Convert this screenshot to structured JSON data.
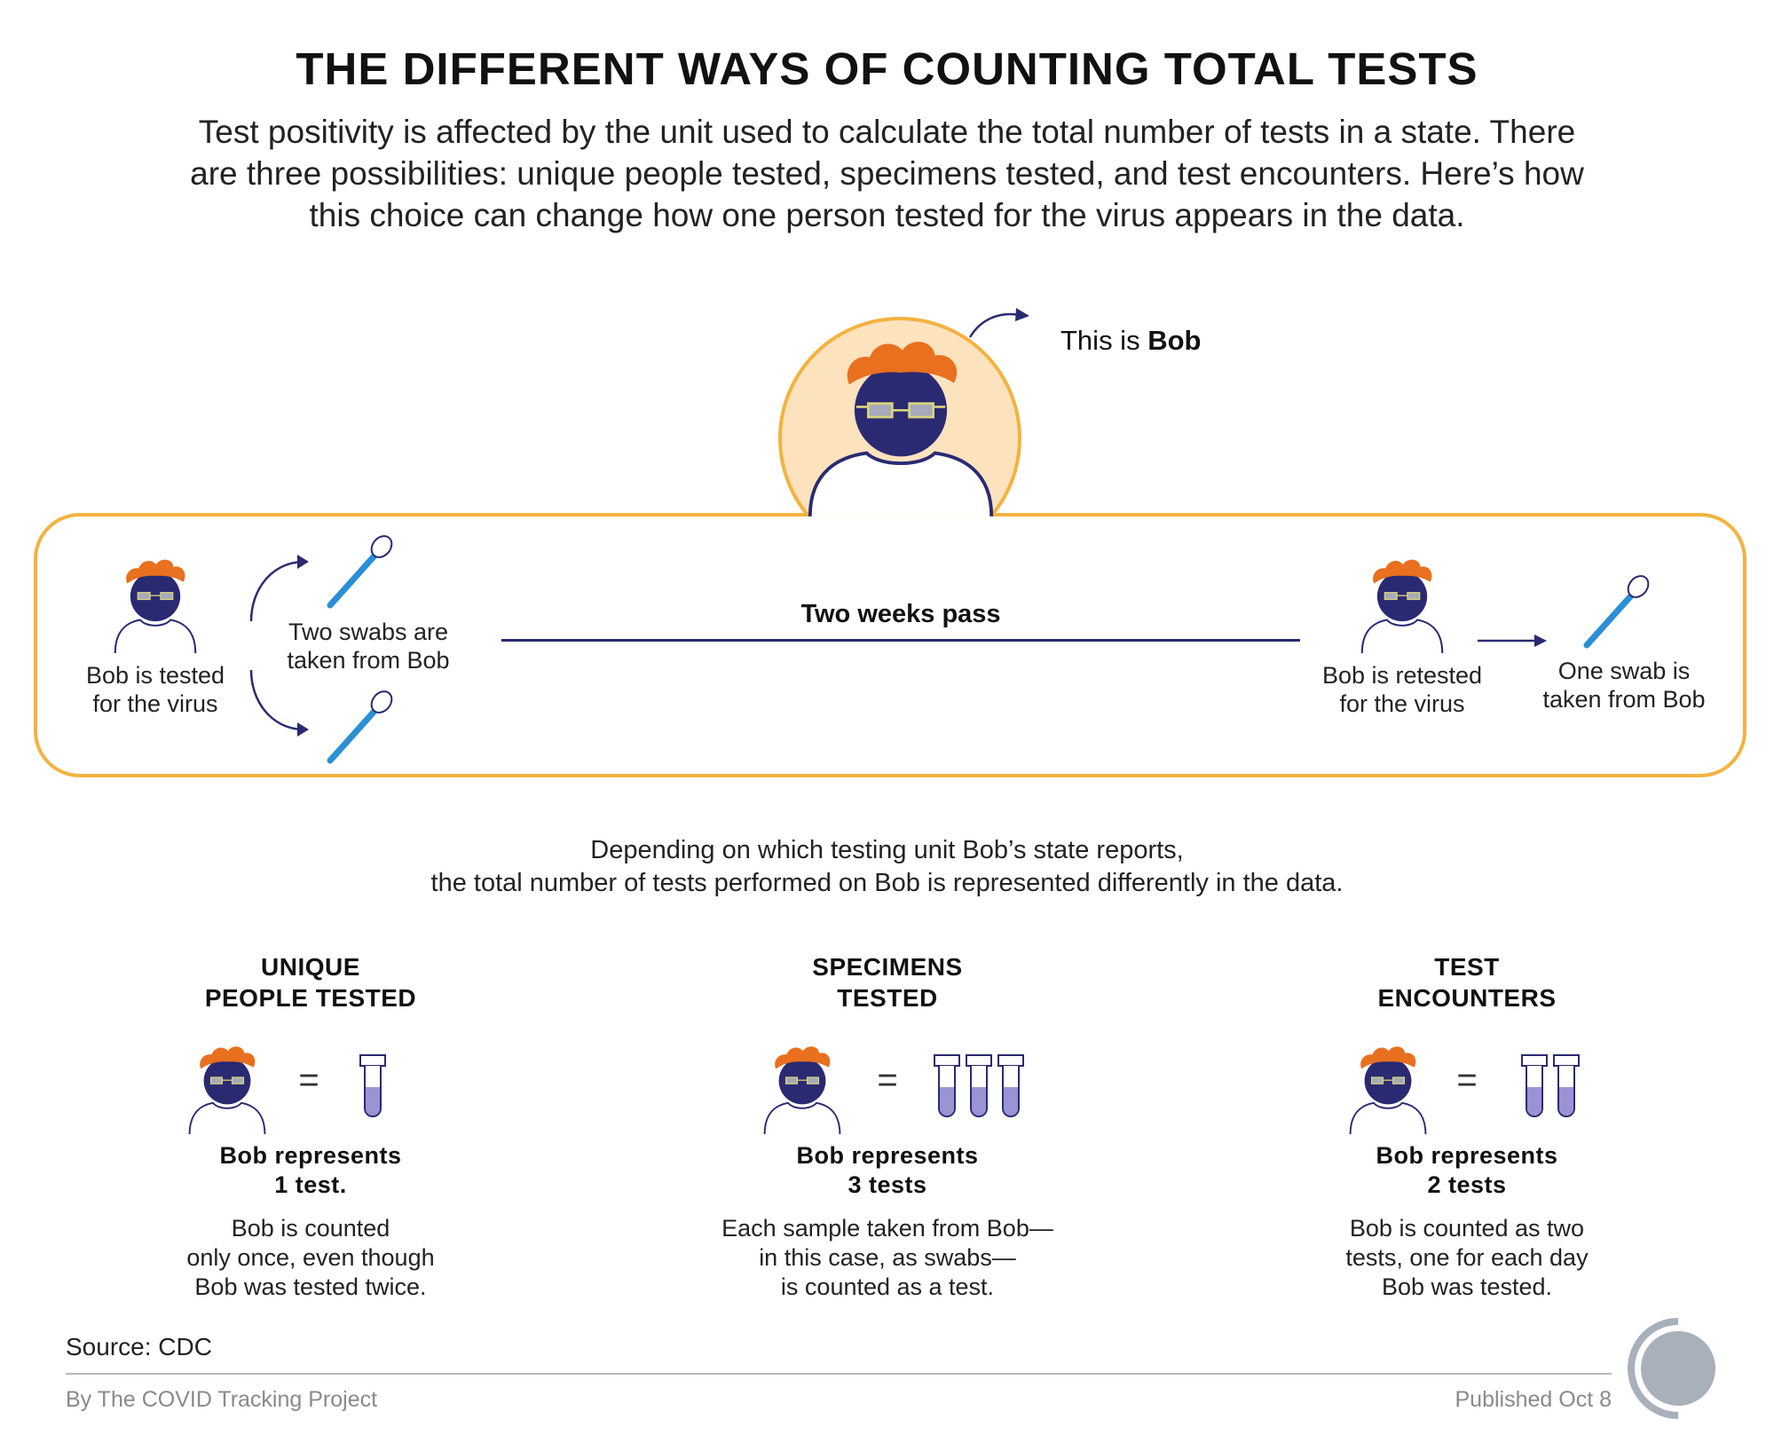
{
  "header": {
    "title": "THE DIFFERENT WAYS OF COUNTING TOTAL TESTS",
    "subtitle_lines": [
      "Test positivity is affected by the unit used to calculate the total number of tests in a state. There",
      "are three possibilities: unique people tested, specimens tested, and test encounters. Here’s how",
      "this choice can change how one person tested for the virus appears in the data."
    ]
  },
  "intro": {
    "this_is": "This is ",
    "name": "Bob"
  },
  "timeline": {
    "first_test_lines": [
      "Bob is tested",
      "for the virus"
    ],
    "two_swabs_lines": [
      "Two swabs are",
      "taken from Bob"
    ],
    "gap_label": "Two weeks pass",
    "retest_lines": [
      "Bob is retested",
      "for the virus"
    ],
    "one_swab_lines": [
      "One swab is",
      "taken from Bob"
    ]
  },
  "explanation_lines": [
    "Depending on which testing unit Bob’s state reports,",
    "the total number of tests performed on Bob is represented differently in the data."
  ],
  "methods": [
    {
      "heading_lines": [
        "UNIQUE",
        "PEOPLE TESTED"
      ],
      "equals": "=",
      "tubes": 1,
      "result_lines": [
        "Bob represents",
        "1 test."
      ],
      "desc_lines": [
        "Bob is counted",
        "only once, even though",
        "Bob was tested twice."
      ]
    },
    {
      "heading_lines": [
        "SPECIMENS",
        "TESTED"
      ],
      "equals": "=",
      "tubes": 3,
      "result_lines": [
        "Bob represents",
        "3 tests"
      ],
      "desc_lines": [
        "Each sample taken from Bob—",
        "in this case, as swabs—",
        "is counted as a test."
      ]
    },
    {
      "heading_lines": [
        "TEST",
        "ENCOUNTERS"
      ],
      "equals": "=",
      "tubes": 2,
      "result_lines": [
        "Bob represents",
        "2 tests"
      ],
      "desc_lines": [
        "Bob is counted as two",
        "tests, one for each day",
        "Bob was tested."
      ]
    }
  ],
  "footer": {
    "source": "Source: CDC",
    "byline": "By The COVID Tracking Project",
    "published": "Published Oct 8"
  },
  "colors": {
    "navy": "#2a2a72",
    "hair": "#e8701e",
    "glasses": "#d8d37a",
    "orange_border": "#f2b340",
    "peach": "#fde2be",
    "swab": "#2a8fd6",
    "tube_fill": "#9a93d4",
    "logo_gray": "#a8b0ba"
  }
}
